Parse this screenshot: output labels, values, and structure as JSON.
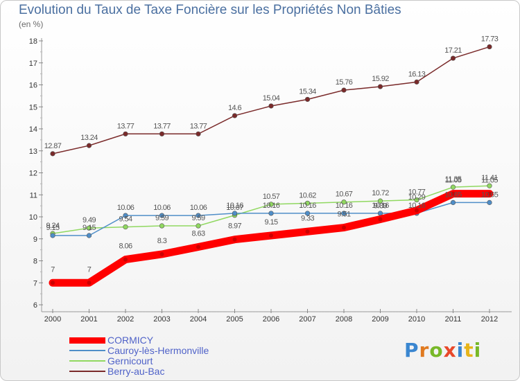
{
  "header": {
    "title": "Evolution du Taux de Taxe Foncière sur les Propriétés Non Bâties",
    "subtitle": "(en %)"
  },
  "logo": {
    "letters": [
      "P",
      "r",
      "o",
      "x",
      "i",
      "t",
      "i"
    ],
    "colors": [
      "#3a86d0",
      "#e07a20",
      "#78b828",
      "#e8482a",
      "#3a86d0",
      "#e7b41a",
      "#78b828"
    ]
  },
  "chart_data": {
    "type": "line",
    "title": "Evolution du Taux de Taxe Foncière sur les Propriétés Non Bâties",
    "ylabel": "(en %)",
    "xlabel": "",
    "x": [
      "2000",
      "2001",
      "2002",
      "2003",
      "2004",
      "2005",
      "2006",
      "2007",
      "2008",
      "2009",
      "2010",
      "2011",
      "2012"
    ],
    "ylim": [
      6,
      18
    ],
    "yticks": [
      6,
      7,
      8,
      9,
      10,
      11,
      12,
      13,
      14,
      15,
      16,
      17,
      18
    ],
    "grid": false,
    "legend": "bottom-left",
    "series": [
      {
        "name": "CORMICY",
        "color": "#ff0000",
        "values": [
          7,
          7,
          8.06,
          8.3,
          8.63,
          8.97,
          9.15,
          9.33,
          9.51,
          9.89,
          10.29,
          11.05,
          11.05
        ],
        "labels": [
          "7",
          "7",
          "8.06",
          "8.3",
          "8.63",
          "8.97",
          "9.15",
          "9.33",
          "9.51",
          "9.89",
          "10.29",
          "11.05",
          "11.05"
        ]
      },
      {
        "name": "Cauroy-lès-Hermonville",
        "color": "#4f8ec8",
        "values": [
          9.15,
          9.15,
          10.06,
          10.06,
          10.06,
          10.16,
          10.16,
          10.16,
          10.16,
          10.16,
          10.16,
          10.65,
          10.65
        ],
        "labels": [
          "9.15",
          "9.15",
          "10.06",
          "10.06",
          "10.06",
          "10.16",
          "10.16",
          "10.16",
          "10.16",
          "10.16",
          "10.16",
          "10.65",
          "10.65"
        ]
      },
      {
        "name": "Gernicourt",
        "color": "#90d860",
        "values": [
          9.24,
          9.49,
          9.54,
          9.59,
          9.59,
          10.07,
          10.57,
          10.62,
          10.67,
          10.72,
          10.77,
          11.35,
          11.41
        ],
        "labels": [
          "9.24",
          "9.49",
          "9.54",
          "9.59",
          "9.59",
          "10.07",
          "10.57",
          "10.62",
          "10.67",
          "10.72",
          "10.77",
          "11.35",
          "11.41"
        ]
      },
      {
        "name": "Berry-au-Bac",
        "color": "#7a2a2a",
        "values": [
          12.87,
          13.24,
          13.77,
          13.77,
          13.77,
          14.6,
          15.04,
          15.34,
          15.76,
          15.92,
          16.13,
          17.21,
          17.73
        ],
        "labels": [
          "12.87",
          "13.24",
          "13.77",
          "13.77",
          "13.77",
          "14.6",
          "15.04",
          "15.34",
          "15.76",
          "15.92",
          "16.13",
          "17.21",
          "17.73"
        ]
      }
    ]
  }
}
